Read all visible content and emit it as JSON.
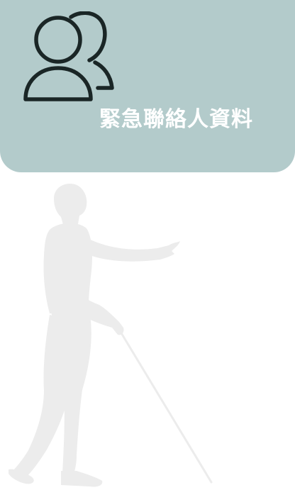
{
  "header": {
    "title": "緊急聯絡人資料",
    "icon": "contacts-icon",
    "background_color": "#b3cbcb",
    "title_color": "#ffffff"
  },
  "illustration": {
    "subject": "person-with-white-cane",
    "color": "#ececec"
  }
}
